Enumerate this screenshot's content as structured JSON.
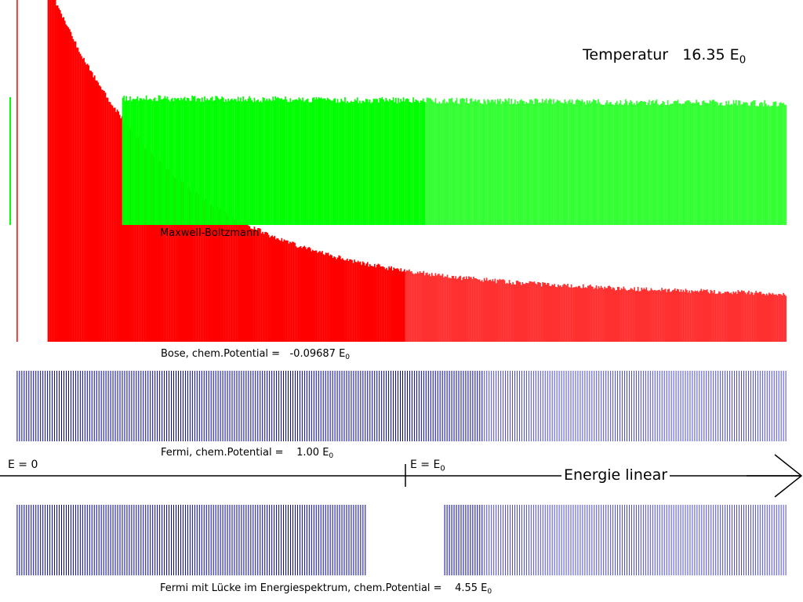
{
  "temperature": {
    "label": "Temperatur",
    "value": "16.35",
    "unit": "E",
    "unit_sub": "0"
  },
  "panels": {
    "maxwell_boltzmann": {
      "label": "Maxwell-Boltzmann",
      "color": "#ff0000"
    },
    "bose": {
      "label": "Bose, chem.Potential =",
      "value": "-0.09687",
      "unit": "E",
      "unit_sub": "0",
      "color": "#00ff00"
    },
    "fermi": {
      "label": "Fermi, chem.Potential =",
      "value": "1.00",
      "unit": "E",
      "unit_sub": "0",
      "color": "#0000a0"
    },
    "fermi_gap": {
      "label": "Fermi mit Lücke im Energiespektrum, chem.Potential =",
      "value": "4.55",
      "unit": "E",
      "unit_sub": "0",
      "color": "#0000a0"
    }
  },
  "axis": {
    "title": "Energie linear",
    "zero_label": "E = 0",
    "e0_label": "E = E",
    "e0_sub": "0"
  },
  "chart_data": {
    "type": "bar",
    "x_scale": "linear",
    "xlim": [
      -0.02,
      2.0
    ],
    "series": [
      {
        "name": "Maxwell-Boltzmann",
        "color": "#ff0000",
        "model": "exp(-E/T)",
        "T": 16.35,
        "E_min": 0.08,
        "E_max": 1.98,
        "ylim_fraction": [
          0,
          1
        ]
      },
      {
        "name": "Bose",
        "color": "#00ff00",
        "mu": -0.09687,
        "occupation_range": [
          0.47,
          0.96
        ]
      },
      {
        "name": "Fermi",
        "color": "#0000a0",
        "mu": 1.0,
        "occupation": 1.0
      },
      {
        "name": "Fermi mit Lücke",
        "color": "#0000a0",
        "mu": 4.55,
        "occupation": 1.0,
        "gap": [
          0.9,
          1.1
        ]
      }
    ],
    "markers": [
      {
        "name": "E = 0",
        "E": 0
      },
      {
        "name": "E = E0",
        "E": 1.0
      }
    ]
  }
}
